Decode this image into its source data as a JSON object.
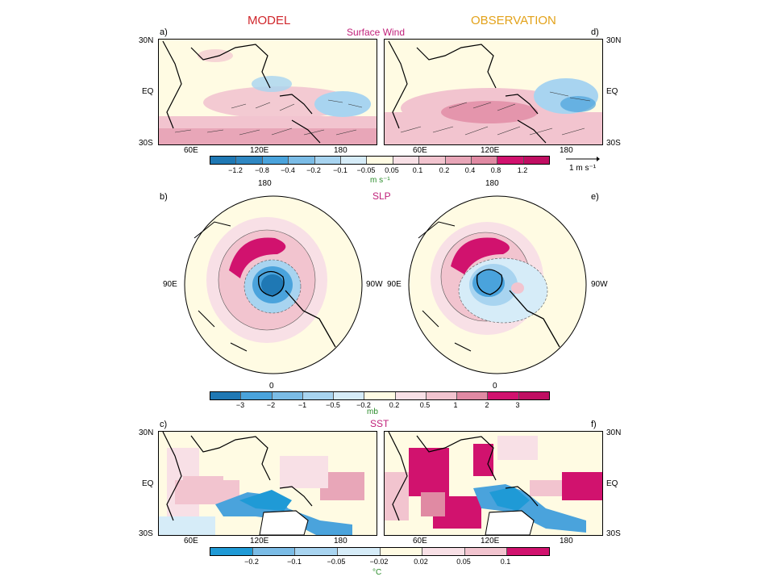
{
  "headers": {
    "model": "MODEL",
    "observation": "OBSERVATION"
  },
  "wind": {
    "title": "Surface Wind",
    "label_left": "a)",
    "label_right": "d)",
    "lat_ticks": [
      "30N",
      "EQ",
      "30S"
    ],
    "lon_ticks": [
      "60E",
      "120E",
      "180"
    ],
    "colorbar": [
      "−1.2",
      "−0.8",
      "−0.4",
      "−0.2",
      "−0.1",
      "−0.05",
      "0.05",
      "0.1",
      "0.2",
      "0.4",
      "0.8",
      "1.2"
    ],
    "unit": "m s⁻¹",
    "ref_vector": "1 m s⁻¹"
  },
  "slp": {
    "title": "SLP",
    "label_left": "b)",
    "label_right": "e)",
    "top_lon": "180",
    "bottom_lon": "0",
    "left_lon": "90E",
    "right_lon": "90W",
    "colorbar": [
      "−3",
      "−2",
      "−1",
      "−0.5",
      "−0.2",
      "0.2",
      "0.5",
      "1",
      "2",
      "3"
    ],
    "unit": "mb"
  },
  "sst": {
    "title": "SST",
    "label_left": "c)",
    "label_right": "f)",
    "lat_ticks": [
      "30N",
      "EQ",
      "30S"
    ],
    "lon_ticks": [
      "60E",
      "120E",
      "180"
    ],
    "colorbar": [
      "−0.2",
      "−0.1",
      "−0.05",
      "−0.02",
      "0.02",
      "0.05",
      "0.1"
    ],
    "unit": "°C"
  },
  "colors": {
    "neg_strong": "#1f78b4",
    "neg_mid": "#4aa3dc",
    "neg_light": "#a8d4f0",
    "neutral": "#fffbe3",
    "pos_light": "#f2c4cf",
    "pos_mid": "#e08aa3",
    "pos_strong": "#d1126e"
  }
}
